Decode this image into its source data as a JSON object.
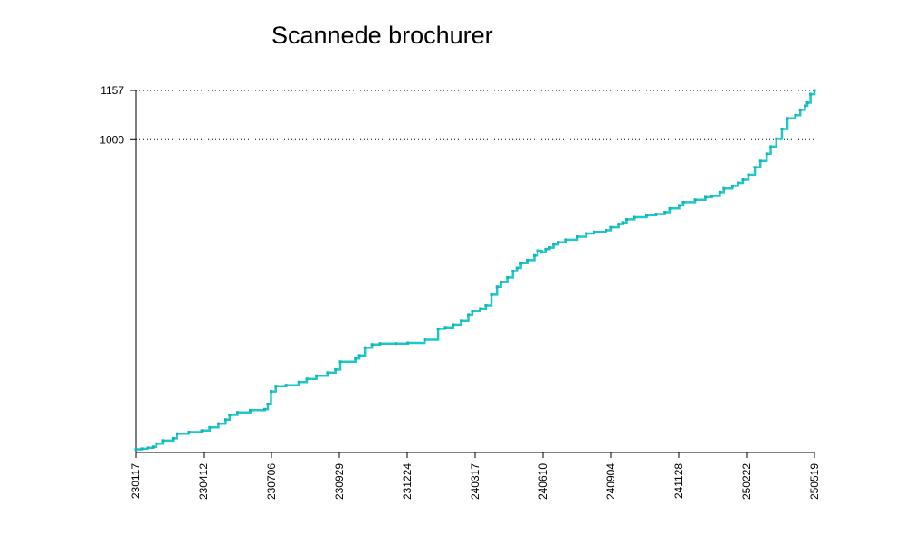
{
  "chart_data": {
    "type": "line",
    "title": "Scannede brochurer",
    "xlabel": "",
    "ylabel": "",
    "x_tick_labels": [
      "230117",
      "230412",
      "230706",
      "230929",
      "231224",
      "240317",
      "240610",
      "240904",
      "241128",
      "250222",
      "250519"
    ],
    "x_range": [
      "2023-01-17",
      "2025-05-19"
    ],
    "y_tick_labels": [
      "1157",
      "1000"
    ],
    "ylim": [
      0,
      1157
    ],
    "grid": "dotted horizontal lines at labeled y ticks",
    "color": "#1ec8c8",
    "series": [
      {
        "points": [
          [
            "2023-01-17",
            10
          ],
          [
            "2023-01-25",
            12
          ],
          [
            "2023-02-01",
            15
          ],
          [
            "2023-02-08",
            18
          ],
          [
            "2023-02-12",
            28
          ],
          [
            "2023-02-20",
            38
          ],
          [
            "2023-03-05",
            45
          ],
          [
            "2023-03-10",
            60
          ],
          [
            "2023-03-25",
            65
          ],
          [
            "2023-04-10",
            70
          ],
          [
            "2023-04-20",
            80
          ],
          [
            "2023-05-01",
            92
          ],
          [
            "2023-05-10",
            105
          ],
          [
            "2023-05-15",
            120
          ],
          [
            "2023-05-25",
            128
          ],
          [
            "2023-06-10",
            135
          ],
          [
            "2023-06-28",
            138
          ],
          [
            "2023-07-02",
            155
          ],
          [
            "2023-07-06",
            195
          ],
          [
            "2023-07-12",
            212
          ],
          [
            "2023-07-25",
            215
          ],
          [
            "2023-08-10",
            225
          ],
          [
            "2023-08-20",
            235
          ],
          [
            "2023-09-01",
            245
          ],
          [
            "2023-09-15",
            255
          ],
          [
            "2023-09-25",
            265
          ],
          [
            "2023-10-01",
            290
          ],
          [
            "2023-10-20",
            300
          ],
          [
            "2023-10-25",
            310
          ],
          [
            "2023-11-01",
            335
          ],
          [
            "2023-11-10",
            345
          ],
          [
            "2023-11-20",
            348
          ],
          [
            "2023-12-10",
            348
          ],
          [
            "2023-12-25",
            350
          ],
          [
            "2024-01-15",
            360
          ],
          [
            "2024-02-01",
            395
          ],
          [
            "2024-02-10",
            400
          ],
          [
            "2024-02-20",
            408
          ],
          [
            "2024-03-01",
            420
          ],
          [
            "2024-03-10",
            440
          ],
          [
            "2024-03-15",
            452
          ],
          [
            "2024-03-25",
            460
          ],
          [
            "2024-04-01",
            470
          ],
          [
            "2024-04-08",
            505
          ],
          [
            "2024-04-15",
            530
          ],
          [
            "2024-04-20",
            545
          ],
          [
            "2024-04-28",
            560
          ],
          [
            "2024-05-05",
            580
          ],
          [
            "2024-05-10",
            590
          ],
          [
            "2024-05-15",
            605
          ],
          [
            "2024-05-23",
            615
          ],
          [
            "2024-06-01",
            630
          ],
          [
            "2024-06-05",
            645
          ],
          [
            "2024-06-10",
            640
          ],
          [
            "2024-06-15",
            650
          ],
          [
            "2024-06-20",
            655
          ],
          [
            "2024-06-25",
            665
          ],
          [
            "2024-07-01",
            672
          ],
          [
            "2024-07-10",
            680
          ],
          [
            "2024-07-25",
            690
          ],
          [
            "2024-08-05",
            700
          ],
          [
            "2024-08-15",
            705
          ],
          [
            "2024-08-30",
            710
          ],
          [
            "2024-09-05",
            720
          ],
          [
            "2024-09-15",
            730
          ],
          [
            "2024-09-20",
            735
          ],
          [
            "2024-09-25",
            745
          ],
          [
            "2024-10-05",
            752
          ],
          [
            "2024-10-20",
            758
          ],
          [
            "2024-11-01",
            762
          ],
          [
            "2024-11-12",
            768
          ],
          [
            "2024-11-18",
            780
          ],
          [
            "2024-11-30",
            790
          ],
          [
            "2024-12-05",
            800
          ],
          [
            "2024-12-20",
            808
          ],
          [
            "2025-01-02",
            816
          ],
          [
            "2025-01-10",
            820
          ],
          [
            "2025-01-20",
            832
          ],
          [
            "2025-01-25",
            844
          ],
          [
            "2025-02-05",
            852
          ],
          [
            "2025-02-12",
            862
          ],
          [
            "2025-02-18",
            872
          ],
          [
            "2025-02-25",
            888
          ],
          [
            "2025-03-05",
            912
          ],
          [
            "2025-03-12",
            932
          ],
          [
            "2025-03-20",
            955
          ],
          [
            "2025-03-25",
            978
          ],
          [
            "2025-04-01",
            1003
          ],
          [
            "2025-04-08",
            1034
          ],
          [
            "2025-04-15",
            1068
          ],
          [
            "2025-04-25",
            1078
          ],
          [
            "2025-05-01",
            1095
          ],
          [
            "2025-05-07",
            1108
          ],
          [
            "2025-05-10",
            1118
          ],
          [
            "2025-05-14",
            1145
          ],
          [
            "2025-05-19",
            1157
          ]
        ]
      }
    ]
  }
}
